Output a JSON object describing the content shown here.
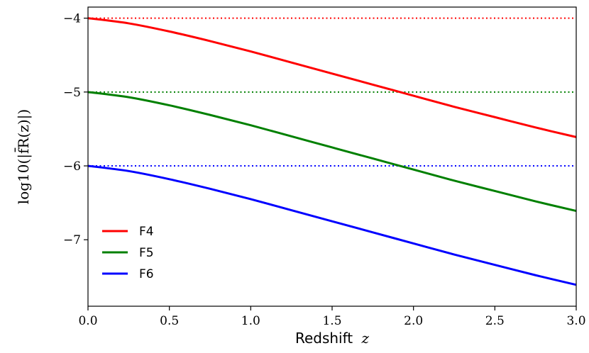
{
  "chart_data": {
    "type": "line",
    "title": "",
    "xlabel": "Redshift",
    "xlabel_var": "z",
    "ylabel": "log10(|f̄R(z)|)",
    "xlim": [
      0.0,
      3.0
    ],
    "ylim": [
      -7.9,
      -3.85
    ],
    "xticks": [
      0.0,
      0.5,
      1.0,
      1.5,
      2.0,
      2.5,
      3.0
    ],
    "xtick_labels": [
      "0.0",
      "0.5",
      "1.0",
      "1.5",
      "2.0",
      "2.5",
      "3.0"
    ],
    "yticks": [
      -4,
      -5,
      -6,
      -7
    ],
    "ytick_labels": [
      "−4",
      "−5",
      "−6",
      "−7"
    ],
    "legend_location": "bottom-left",
    "x": [
      0.0,
      0.25,
      0.5,
      0.75,
      1.0,
      1.25,
      1.5,
      1.75,
      2.0,
      2.25,
      2.5,
      2.75,
      3.0
    ],
    "series": [
      {
        "name": "F4",
        "color": "#ff0000",
        "reference_level": -4,
        "values": [
          -4.0,
          -4.07,
          -4.18,
          -4.31,
          -4.45,
          -4.6,
          -4.75,
          -4.9,
          -5.05,
          -5.2,
          -5.34,
          -5.48,
          -5.61
        ]
      },
      {
        "name": "F5",
        "color": "#008000",
        "reference_level": -5,
        "values": [
          -5.0,
          -5.07,
          -5.18,
          -5.31,
          -5.45,
          -5.6,
          -5.75,
          -5.9,
          -6.05,
          -6.2,
          -6.34,
          -6.48,
          -6.61
        ]
      },
      {
        "name": "F6",
        "color": "#0000ff",
        "reference_level": -6,
        "values": [
          -6.0,
          -6.07,
          -6.18,
          -6.31,
          -6.45,
          -6.6,
          -6.75,
          -6.9,
          -7.05,
          -7.2,
          -7.34,
          -7.48,
          -7.61
        ]
      }
    ]
  }
}
